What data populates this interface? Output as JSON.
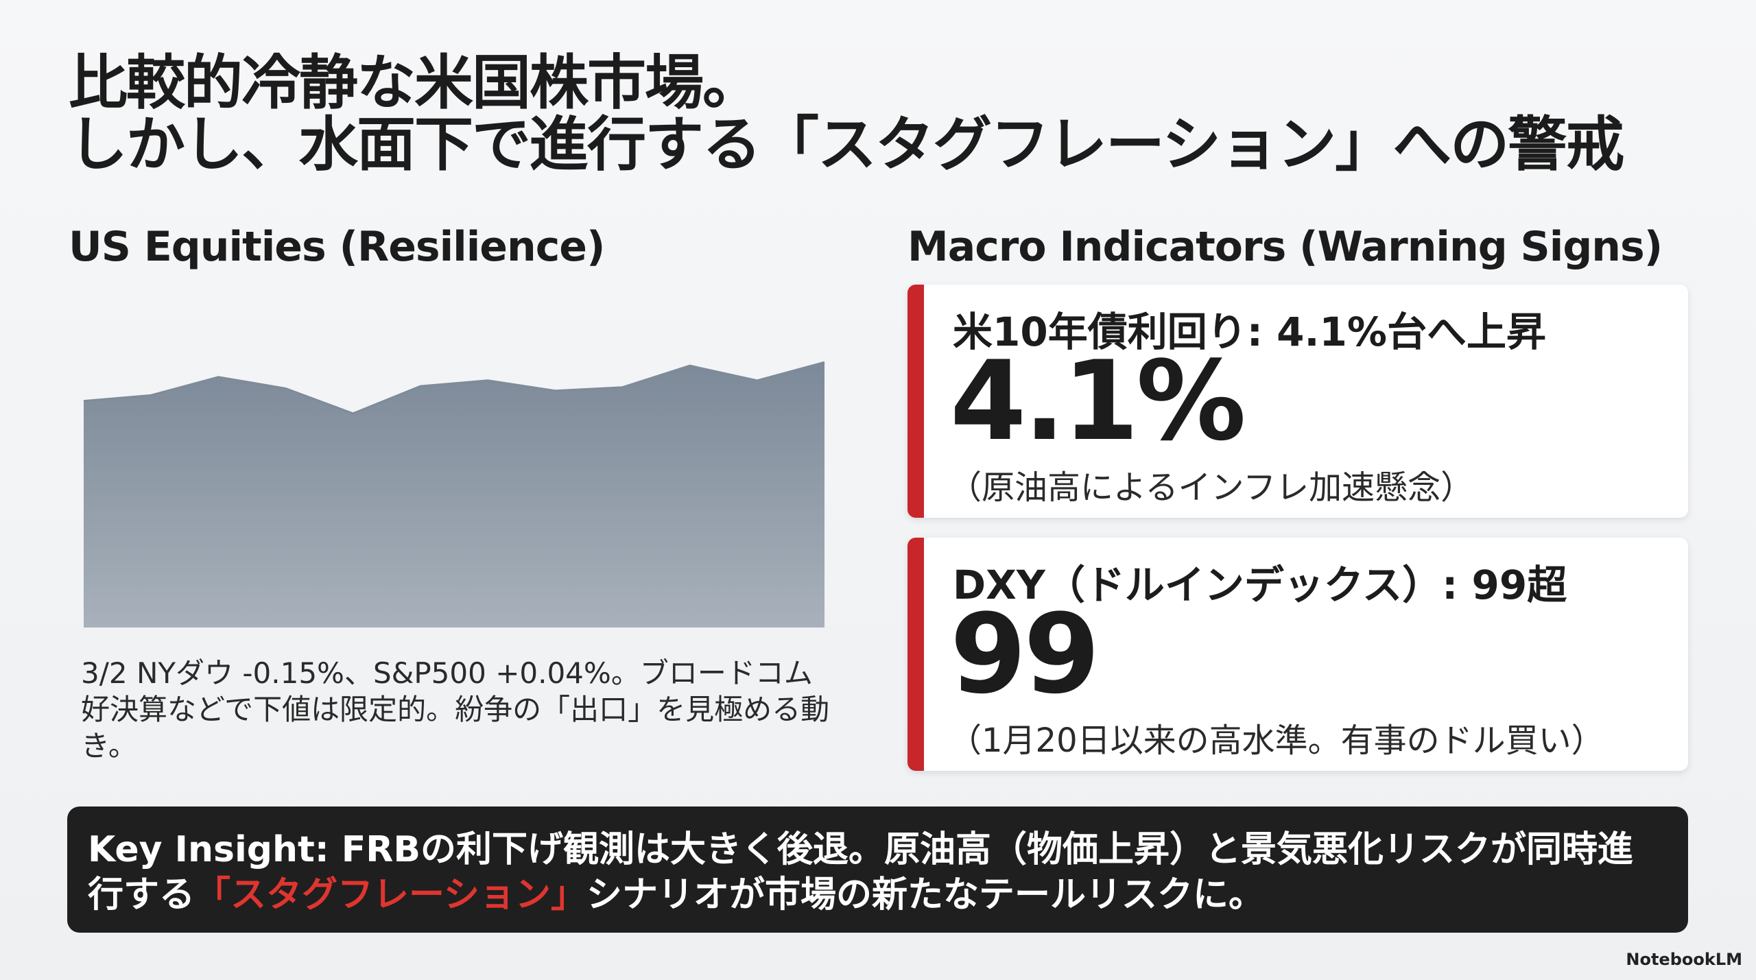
{
  "title_lines": [
    "比較的冷静な米国株市場。",
    "しかし、水面下で進行する「スタグフレーション」への警戒"
  ],
  "left": {
    "heading": "US Equities (Resilience)",
    "chart_data": {
      "type": "area",
      "values": [
        199,
        204,
        220,
        210,
        188,
        212,
        217,
        208,
        211,
        230,
        217,
        233
      ],
      "ylim": [
        0,
        250
      ],
      "color": "#7f8b99"
    },
    "caption": "3/2 NYダウ -0.15%、S&P500 +0.04%。ブロードコム好決算などで下値は限定的。紛争の「出口」を見極める動き。"
  },
  "right": {
    "heading": "Macro Indicators (Warning Signs)",
    "cards": [
      {
        "title": "米10年債利回り: 4.1%台へ上昇",
        "big": "4.1%",
        "note": "（原油高によるインフレ加速懸念）"
      },
      {
        "title": "DXY（ドルインデックス）: 99超",
        "big": "99",
        "note": "（1月20日以来の高水準。有事のドル買い）"
      }
    ]
  },
  "insight": {
    "before": "Key Insight: FRBの利下げ観測は大きく後退。原油高（物価上昇）と景気悪化リスクが同時進行する",
    "highlight": "「スタグフレーション」",
    "after": "シナリオが市場の新たなテールリスクに。"
  },
  "footer": "NotebookLM"
}
